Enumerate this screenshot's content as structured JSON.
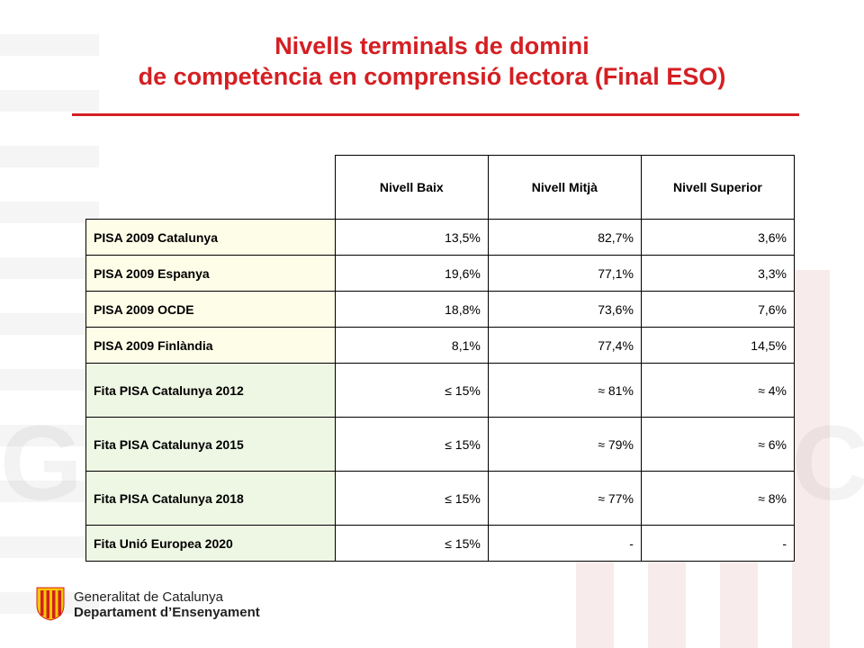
{
  "title": {
    "line1": "Nivells terminals de domini",
    "line2": "de competència en comprensió lectora (Final ESO)"
  },
  "colors": {
    "title": "#d41f23",
    "pisa_row_bg": "#fefde8",
    "fita_row_bg": "#eef6e4"
  },
  "table": {
    "headers": [
      "Nivell Baix",
      "Nivell Mitjà",
      "Nivell Superior"
    ],
    "rows": [
      {
        "label": "PISA 2009 Catalunya",
        "values": [
          "13,5%",
          "82,7%",
          "3,6%"
        ]
      },
      {
        "label": "PISA 2009 Espanya",
        "values": [
          "19,6%",
          "77,1%",
          "3,3%"
        ]
      },
      {
        "label": "PISA 2009 OCDE",
        "values": [
          "18,8%",
          "73,6%",
          "7,6%"
        ]
      },
      {
        "label": "PISA 2009 Finlàndia",
        "values": [
          "8,1%",
          "77,4%",
          "14,5%"
        ]
      },
      {
        "label": "Fita PISA Catalunya 2012",
        "values": [
          "≤ 15%",
          "≈ 81%",
          "≈ 4%"
        ]
      },
      {
        "label": "Fita PISA Catalunya 2015",
        "values": [
          "≤ 15%",
          "≈ 79%",
          "≈ 6%"
        ]
      },
      {
        "label": "Fita PISA Catalunya 2018",
        "values": [
          "≤ 15%",
          "≈ 77%",
          "≈ 8%"
        ]
      },
      {
        "label": "Fita Unió Europea 2020",
        "values": [
          "≤ 15%",
          "-",
          "-"
        ]
      }
    ]
  },
  "logo": {
    "icon": "generalitat-logo-icon",
    "name": "Generalitat de Catalunya",
    "department": "Departament d’Ensenyament"
  }
}
